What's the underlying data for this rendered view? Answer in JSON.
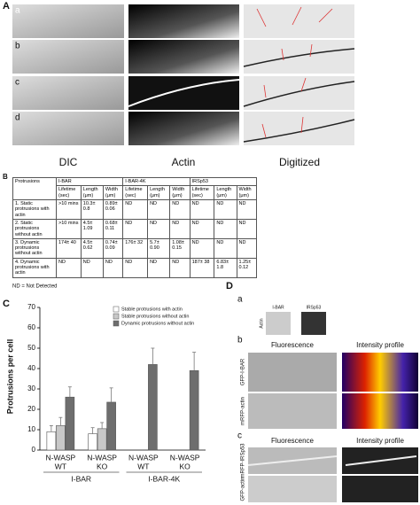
{
  "panel_a": {
    "letter": "A",
    "rows": [
      "a",
      "b",
      "c",
      "d"
    ],
    "columns": [
      "DIC",
      "Actin",
      "Digitized"
    ]
  },
  "panel_b": {
    "letter": "B",
    "groups": [
      "Protrusions",
      "I-BAR",
      "I-BAR-4K",
      "IRSp53"
    ],
    "subheaders": [
      "Lifetime (sec)",
      "Length (μm)",
      "Width (μm)",
      "Lifetime (sec)",
      "Length (μm)",
      "Width (μm)",
      "Lifetime (sec)",
      "Length (μm)",
      "Width (μm)"
    ],
    "rows": [
      [
        "1. Static protrusions with actin",
        ">10 mins",
        "10.3± 0.8",
        "0.89± 0.06",
        "ND",
        "ND",
        "ND",
        "ND",
        "ND",
        "ND"
      ],
      [
        "2. Static protrusions without actin",
        ">10 mins",
        "4.5± 1.09",
        "0.68± 0.11",
        "ND",
        "ND",
        "ND",
        "ND",
        "ND",
        "ND"
      ],
      [
        "3. Dynamic protrusions without actin",
        "174± 40",
        "4.5± 0.62",
        "0.74± 0.09",
        "176± 32",
        "5.7± 0.90",
        "1.08± 0.15",
        "ND",
        "ND",
        "ND"
      ],
      [
        "4. Dynamic protrusions with actin",
        "ND",
        "ND",
        "ND",
        "ND",
        "ND",
        "ND",
        "187± 38",
        "6.83± 1.8",
        "1.25± 0.12"
      ]
    ],
    "note": "ND = Not Detected"
  },
  "chart_data": {
    "type": "bar",
    "letter": "C",
    "y_label": "Protrusions per cell",
    "categories": [
      [
        "N-WASP",
        "WT"
      ],
      [
        "N-WASP",
        "KO"
      ],
      [
        "N-WASP",
        "WT"
      ],
      [
        "N-WASP",
        "KO"
      ]
    ],
    "groups": [
      "I-BAR",
      "I-BAR-4K"
    ],
    "series": [
      {
        "name": "Stable protrusions with actin",
        "color": "#ffffff",
        "values": [
          9,
          8,
          null,
          null
        ],
        "errors": [
          3,
          3,
          null,
          null
        ]
      },
      {
        "name": "Stable protrusions without actin",
        "color": "#c8c8c8",
        "values": [
          12,
          10.5,
          null,
          null
        ],
        "errors": [
          4,
          3,
          null,
          null
        ]
      },
      {
        "name": "Dynamic protrusions without actin",
        "color": "#6e6e6e",
        "values": [
          26,
          23.5,
          42,
          39
        ],
        "errors": [
          5,
          7,
          8,
          9
        ]
      }
    ],
    "ylim": [
      0,
      70
    ],
    "yticks": [
      0,
      10,
      20,
      30,
      40,
      50,
      60,
      70
    ]
  },
  "panel_d": {
    "letter": "D",
    "a": {
      "letter": "a",
      "labels": [
        "I-BAR",
        "IRSp53"
      ],
      "side": "Actin"
    },
    "b": {
      "letter": "b",
      "headers": [
        "Fluorescence",
        "Intensity profile"
      ],
      "rows": [
        "GFP-I-BAR",
        "mRFP-actin"
      ]
    },
    "c": {
      "letter": "c",
      "headers": [
        "Fluorescence",
        "Intensity profile"
      ],
      "rows": [
        "mRFP-IRSp53",
        "GFP-actin"
      ]
    }
  }
}
